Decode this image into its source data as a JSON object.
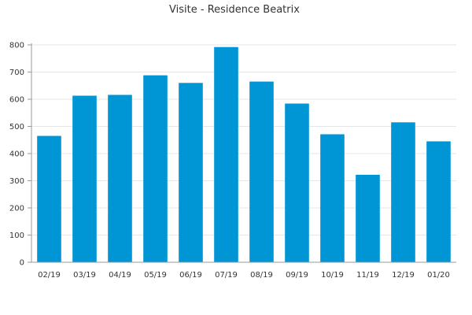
{
  "chart_data": {
    "type": "bar",
    "title": "Visite - Residence Beatrix",
    "xlabel": "",
    "ylabel": "",
    "categories": [
      "02/19",
      "03/19",
      "04/19",
      "05/19",
      "06/19",
      "07/19",
      "08/19",
      "09/19",
      "10/19",
      "11/19",
      "12/19",
      "01/20"
    ],
    "values": [
      465,
      613,
      616,
      688,
      660,
      792,
      665,
      584,
      471,
      322,
      515,
      445
    ],
    "ylim": [
      0,
      800
    ],
    "yticks": [
      0,
      100,
      200,
      300,
      400,
      500,
      600,
      700,
      800
    ],
    "grid": true,
    "legend": "none",
    "colors": {
      "bar": "#0096d6",
      "grid": "#e6e6e6",
      "axis": "#999999",
      "text": "#333333"
    }
  }
}
